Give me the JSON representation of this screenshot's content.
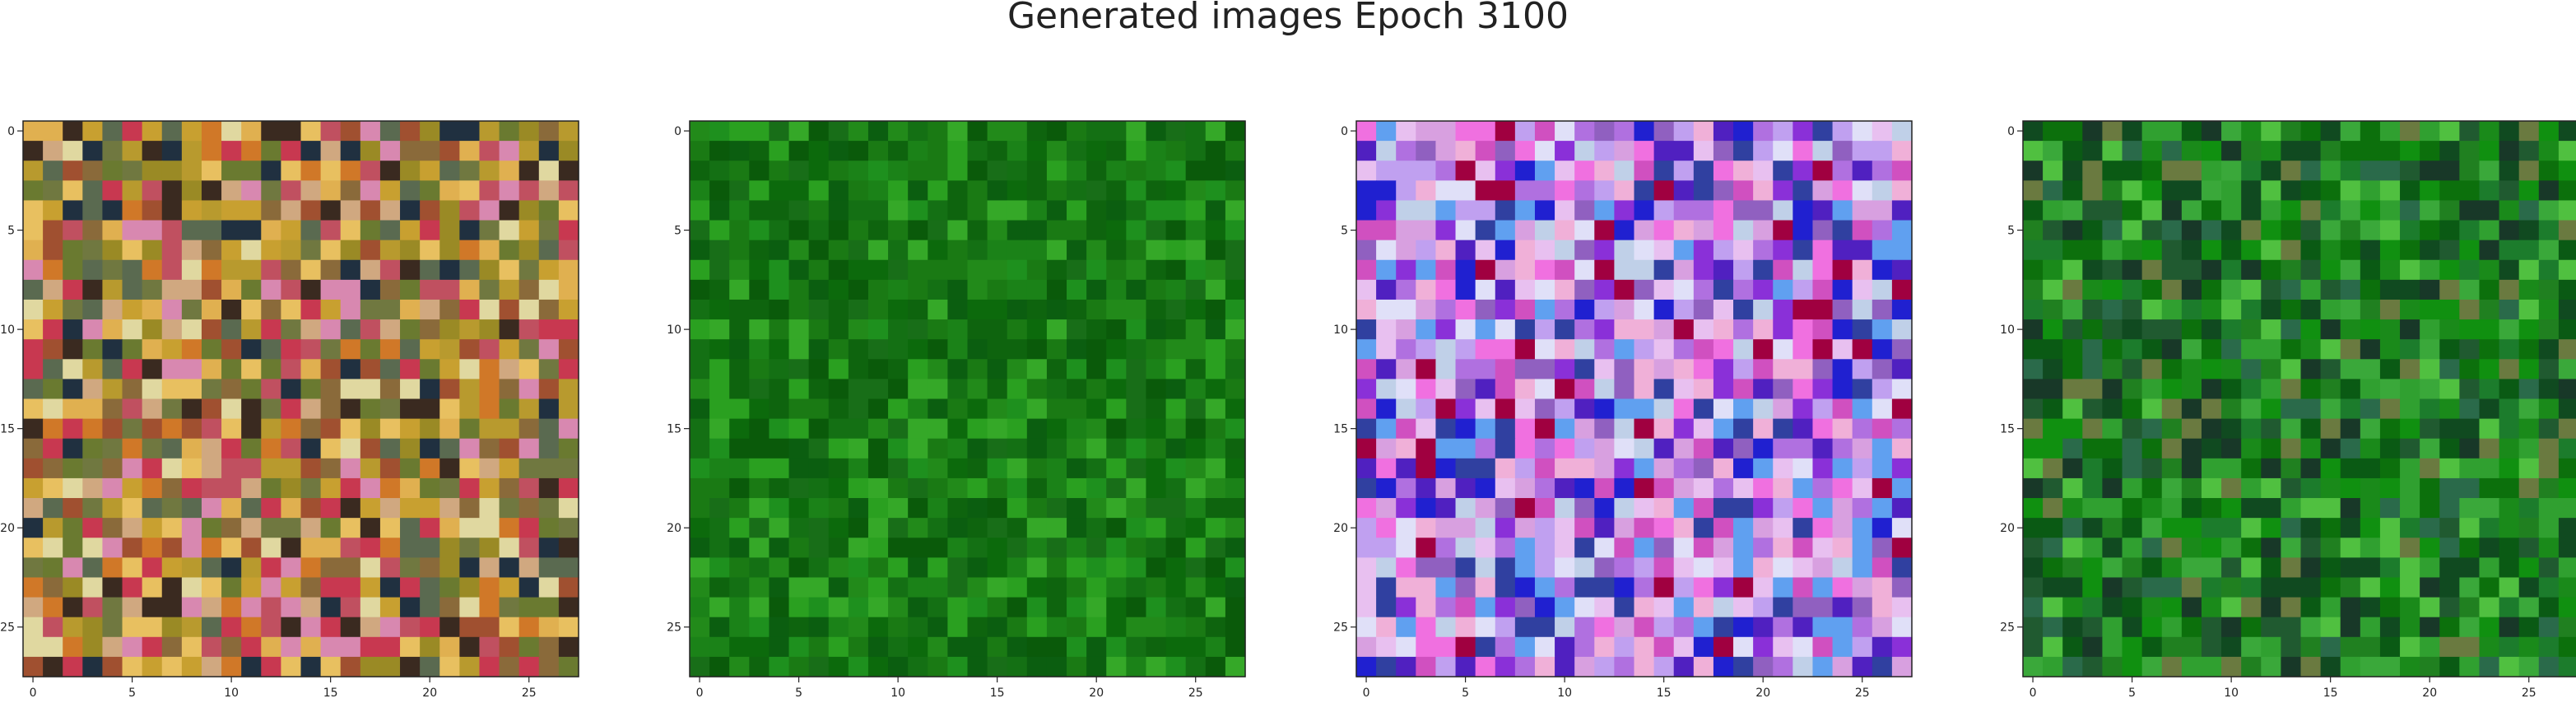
{
  "title": "Generated images Epoch 3100",
  "chart_data": [
    {
      "type": "heatmap",
      "grid_size": 28,
      "x_ticks": [
        0,
        5,
        10,
        15,
        20,
        25
      ],
      "y_ticks": [
        0,
        5,
        10,
        15,
        20,
        25
      ],
      "xlim": [
        -0.5,
        27.5
      ],
      "ylim": [
        27.5,
        -0.5
      ],
      "palette": [
        "#b89a2e",
        "#c8a030",
        "#9a8a25",
        "#d07828",
        "#e0b050",
        "#6a7a30",
        "#3a2a20",
        "#a05030",
        "#d888b0",
        "#e8c060",
        "#8a6a3a",
        "#c05060",
        "#5a6a50",
        "#203040",
        "#e0d8a0",
        "#c83850",
        "#d0a880",
        "#707840"
      ],
      "seed": 11
    },
    {
      "type": "heatmap",
      "grid_size": 28,
      "x_ticks": [
        0,
        5,
        10,
        15,
        20,
        25
      ],
      "y_ticks": [
        0,
        5,
        10,
        15,
        20,
        25
      ],
      "xlim": [
        -0.5,
        27.5
      ],
      "ylim": [
        27.5,
        -0.5
      ],
      "palette": [
        "#1a7a14",
        "#0c6a0c",
        "#228a1a",
        "#0a5a0a",
        "#1e901e",
        "#147014",
        "#2aa020",
        "#0e640e",
        "#186e18",
        "#35a828",
        "#0b5e10",
        "#1b8218"
      ],
      "seed": 23
    },
    {
      "type": "heatmap",
      "grid_size": 28,
      "x_ticks": [
        0,
        5,
        10,
        15,
        20,
        25
      ],
      "y_ticks": [
        0,
        5,
        10,
        15,
        20,
        25
      ],
      "xlim": [
        -0.5,
        27.5
      ],
      "ylim": [
        27.5,
        -0.5
      ],
      "palette": [
        "#d8a0e0",
        "#b070e0",
        "#e8c0f0",
        "#8a30d8",
        "#f070e0",
        "#c0a0f0",
        "#5020c0",
        "#2020d0",
        "#a00040",
        "#e0e0f8",
        "#60a0f0",
        "#d050c0",
        "#9060c0",
        "#f0b0d8",
        "#3040a0",
        "#c0d0e8"
      ],
      "seed": 37
    },
    {
      "type": "heatmap",
      "grid_size": 28,
      "x_ticks": [
        0,
        5,
        10,
        15,
        20,
        25
      ],
      "y_ticks": [
        0,
        5,
        10,
        15,
        20,
        25
      ],
      "xlim": [
        -0.5,
        27.5
      ],
      "ylim": [
        27.5,
        -0.5
      ],
      "palette": [
        "#1a8a1a",
        "#0c700c",
        "#30a030",
        "#104a20",
        "#208020",
        "#50c040",
        "#0a5a14",
        "#2a6a4a",
        "#183828",
        "#6a7a40",
        "#109010",
        "#3aa83a",
        "#205a30",
        "#1c7c2c"
      ],
      "seed": 53
    }
  ]
}
